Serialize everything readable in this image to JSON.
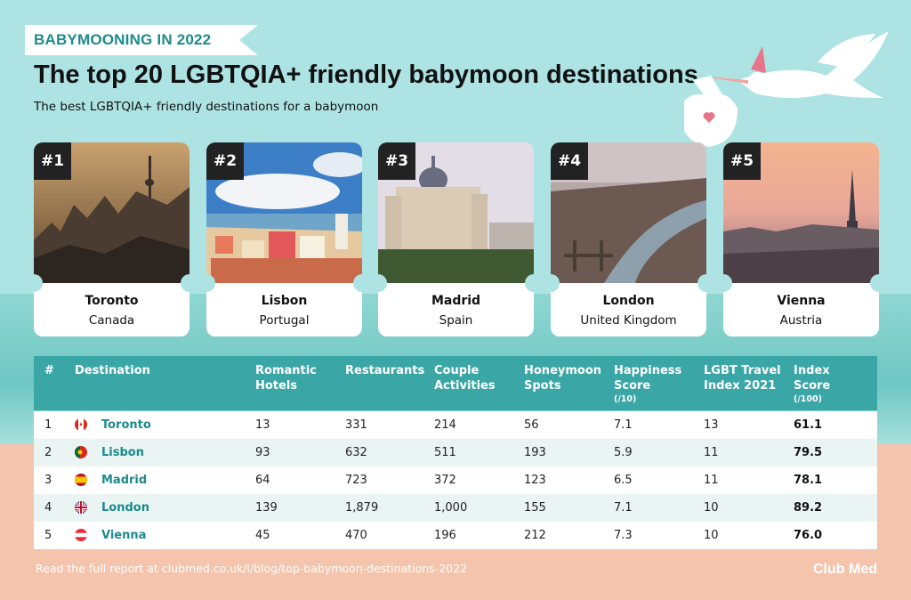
{
  "header": {
    "ribbon": "BABYMOONING IN 2022",
    "title": "The top 20 LGBTQIA+ friendly babymoon destinations",
    "subtitle": "The best LGBTQIA+ friendly destinations for a babymoon"
  },
  "cards": [
    {
      "rank": "#1",
      "city": "Toronto",
      "country": "Canada"
    },
    {
      "rank": "#2",
      "city": "Lisbon",
      "country": "Portugal"
    },
    {
      "rank": "#3",
      "city": "Madrid",
      "country": "Spain"
    },
    {
      "rank": "#4",
      "city": "London",
      "country": "United Kingdom"
    },
    {
      "rank": "#5",
      "city": "Vienna",
      "country": "Austria"
    }
  ],
  "table": {
    "headers": {
      "num": "#",
      "destination": "Destination",
      "romantic_1": "Romantic",
      "romantic_2": "Hotels",
      "restaurants": "Restaurants",
      "couple_1": "Couple",
      "couple_2": "Activities",
      "honeymoon_1": "Honeymoon",
      "honeymoon_2": "Spots",
      "happiness_1": "Happiness",
      "happiness_2": "Score",
      "happiness_unit": "(/10)",
      "lgbt_1": "LGBT Travel",
      "lgbt_2": "Index 2021",
      "index_1": "Index",
      "index_2": "Score",
      "index_unit": "(/100)"
    },
    "rows": [
      {
        "num": "1",
        "destination": "Toronto",
        "hotels": "13",
        "restaurants": "331",
        "activities": "214",
        "spots": "56",
        "happiness": "7.1",
        "lgbt": "13",
        "index": "61.1"
      },
      {
        "num": "2",
        "destination": "Lisbon",
        "hotels": "93",
        "restaurants": "632",
        "activities": "511",
        "spots": "193",
        "happiness": "5.9",
        "lgbt": "11",
        "index": "79.5"
      },
      {
        "num": "3",
        "destination": "Madrid",
        "hotels": "64",
        "restaurants": "723",
        "activities": "372",
        "spots": "123",
        "happiness": "6.5",
        "lgbt": "11",
        "index": "78.1"
      },
      {
        "num": "4",
        "destination": "London",
        "hotels": "139",
        "restaurants": "1,879",
        "activities": "1,000",
        "spots": "155",
        "happiness": "7.1",
        "lgbt": "10",
        "index": "89.2"
      },
      {
        "num": "5",
        "destination": "Vienna",
        "hotels": "45",
        "restaurants": "470",
        "activities": "196",
        "spots": "212",
        "happiness": "7.3",
        "lgbt": "10",
        "index": "76.0"
      }
    ]
  },
  "footer": {
    "text": "Read the full report at clubmed.co.uk/l/blog/top-babymoon-destinations-2022",
    "logo": "Club Med"
  },
  "colors": {
    "accent": "#1c8a8c",
    "header_bg": "#3aa6a6"
  },
  "icons": [
    "stork-icon",
    "canada-flag-icon",
    "portugal-flag-icon",
    "spain-flag-icon",
    "uk-flag-icon",
    "austria-flag-icon"
  ]
}
